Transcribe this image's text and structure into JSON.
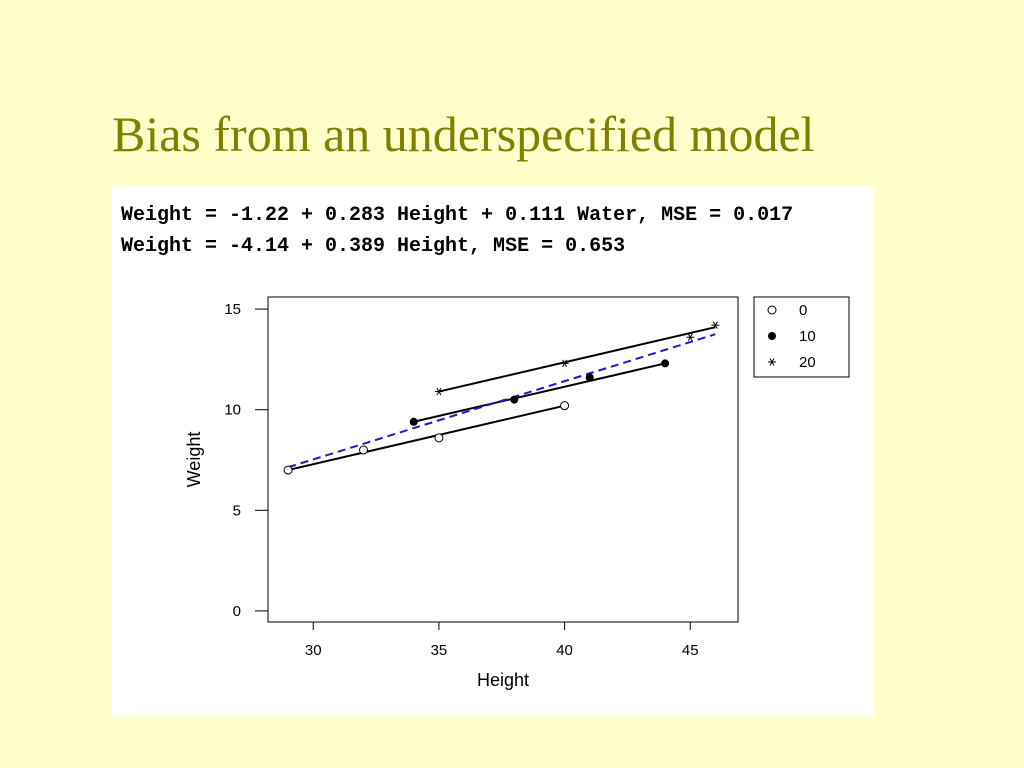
{
  "slide": {
    "title": "Bias from an underspecified model",
    "title_color": "#808000",
    "background": "#ffffcc"
  },
  "equations": {
    "full_model": "Weight = -1.22 + 0.283 Height + 0.111 Water, MSE = 0.017",
    "reduced_model": "Weight = -4.14 + 0.389 Height, MSE = 0.653"
  },
  "chart_data": {
    "type": "scatter",
    "xlabel": "Height",
    "ylabel": "Weight",
    "xlim": [
      28.2,
      46.9
    ],
    "ylim": [
      -0.55,
      15.6
    ],
    "xticks": [
      30,
      35,
      40,
      45
    ],
    "yticks": [
      0,
      5,
      10,
      15
    ],
    "grid": false,
    "legend_position": "top-right-outside",
    "series": [
      {
        "name": "0",
        "marker": "open-circle",
        "points": [
          [
            29,
            7.0
          ],
          [
            32,
            8.0
          ],
          [
            35,
            8.6
          ],
          [
            40,
            10.2
          ]
        ],
        "fit_line": [
          [
            29,
            7.0
          ],
          [
            40,
            10.2
          ]
        ]
      },
      {
        "name": "10",
        "marker": "filled-circle",
        "points": [
          [
            34,
            9.4
          ],
          [
            38,
            10.5
          ],
          [
            41,
            11.6
          ],
          [
            44,
            12.3
          ]
        ],
        "fit_line": [
          [
            34,
            9.4
          ],
          [
            44,
            12.3
          ]
        ]
      },
      {
        "name": "20",
        "marker": "asterisk",
        "points": [
          [
            35,
            10.9
          ],
          [
            40,
            12.3
          ],
          [
            45,
            13.6
          ],
          [
            46,
            14.2
          ]
        ],
        "fit_line": [
          [
            35,
            10.9
          ],
          [
            46,
            14.1
          ]
        ]
      }
    ],
    "overall_fit": {
      "style": "dashed",
      "color": "#1a1acc",
      "line": [
        [
          29,
          7.14
        ],
        [
          46,
          13.75
        ]
      ]
    }
  }
}
